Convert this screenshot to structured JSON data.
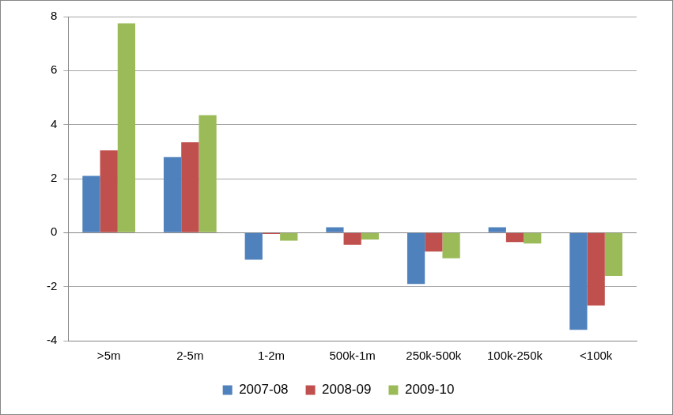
{
  "chart_data": {
    "type": "bar",
    "categories": [
      ">5m",
      "2-5m",
      "1-2m",
      "500k-1m",
      "250k-500k",
      "100k-250k",
      "<100k"
    ],
    "series": [
      {
        "name": "2007-08",
        "color": "#4f81bd",
        "values": [
          2.1,
          2.8,
          -1.0,
          0.2,
          -1.9,
          0.2,
          -3.6
        ]
      },
      {
        "name": "2008-09",
        "color": "#c0504d",
        "values": [
          3.05,
          3.35,
          -0.05,
          -0.45,
          -0.7,
          -0.35,
          -2.7
        ]
      },
      {
        "name": "2009-10",
        "color": "#9bbb59",
        "values": [
          7.75,
          4.35,
          -0.3,
          -0.25,
          -0.95,
          -0.4,
          -1.6
        ]
      }
    ],
    "ylim": [
      -4,
      8
    ],
    "yticks": [
      -4,
      -2,
      0,
      2,
      4,
      6,
      8
    ],
    "grid": true,
    "legend": "bottom"
  }
}
